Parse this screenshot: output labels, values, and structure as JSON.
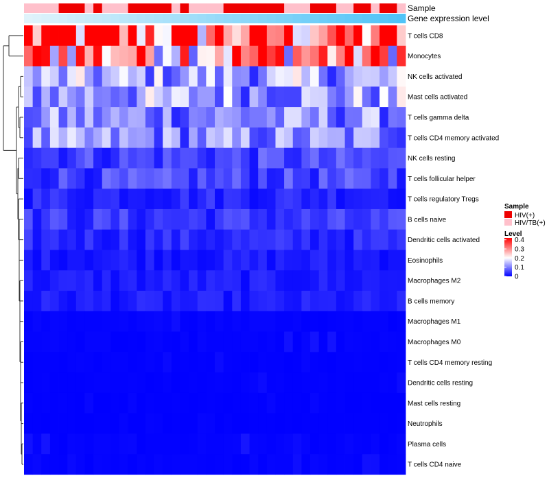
{
  "chart_data": {
    "type": "heatmap",
    "rows": [
      "T cells CD8",
      "Monocytes",
      "NK cells activated",
      "Mast cells activated",
      "T cells gamma delta",
      "T cells CD4 memory activated",
      "NK cells resting",
      "T cells follicular helper",
      "T cells regulatory  Tregs",
      "B cells naive",
      "Dendritic cells activated",
      "Eosinophils",
      "Macrophages M2",
      "B cells memory",
      "Macrophages M1",
      "Macrophages M0",
      "T cells CD4 memory resting",
      "Dendritic cells resting",
      "Mast cells resting",
      "Neutrophils",
      "Plasma cells",
      "T cells CD4 naive"
    ],
    "n_samples": 44,
    "row_means": [
      0.33,
      0.3,
      0.12,
      0.12,
      0.1,
      0.1,
      0.05,
      0.05,
      0.03,
      0.04,
      0.03,
      0.02,
      0.02,
      0.02,
      0.01,
      0.01,
      0.005,
      0.005,
      0.003,
      0.002,
      0.01,
      0.008
    ],
    "sample_groups": [
      "HIV/TB(+)",
      "HIV/TB(+)",
      "HIV/TB(+)",
      "HIV/TB(+)",
      "HIV(+)",
      "HIV(+)",
      "HIV(+)",
      "HIV/TB(+)",
      "HIV(+)",
      "HIV/TB(+)",
      "HIV/TB(+)",
      "HIV/TB(+)",
      "HIV(+)",
      "HIV(+)",
      "HIV(+)",
      "HIV(+)",
      "HIV(+)",
      "HIV/TB(+)",
      "HIV(+)",
      "HIV/TB(+)",
      "HIV/TB(+)",
      "HIV/TB(+)",
      "HIV/TB(+)",
      "HIV(+)",
      "HIV(+)",
      "HIV(+)",
      "HIV(+)",
      "HIV(+)",
      "HIV(+)",
      "HIV(+)",
      "HIV/TB(+)",
      "HIV/TB(+)",
      "HIV/TB(+)",
      "HIV(+)",
      "HIV(+)",
      "HIV(+)",
      "HIV/TB(+)",
      "HIV/TB(+)",
      "HIV(+)",
      "HIV(+)",
      "HIV/TB(+)",
      "HIV(+)",
      "HIV(+)",
      "HIV/TB(+)"
    ],
    "annotations": [
      "Sample",
      "Gene expression level"
    ],
    "legend": {
      "sample_title": "Sample",
      "sample_entries": [
        {
          "label": "HIV(+)",
          "color": "#ee0000"
        },
        {
          "label": "HIV/TB(+)",
          "color": "#ffc0cb"
        }
      ],
      "level_title": "Level",
      "level_ticks": [
        "0.4",
        "0.3",
        "0.2",
        "0.1",
        "0"
      ],
      "level_tick_values": [
        0.4,
        0.3,
        0.2,
        0.1,
        0
      ],
      "level_range": [
        0,
        0.42
      ]
    },
    "color_scale": {
      "low": "#0000ff",
      "mid": "#ffffff",
      "high": "#ff0000",
      "mid_value": 0.2
    },
    "gene_expression_gradient": [
      "#e0f3fb",
      "#4fc3f7"
    ]
  }
}
